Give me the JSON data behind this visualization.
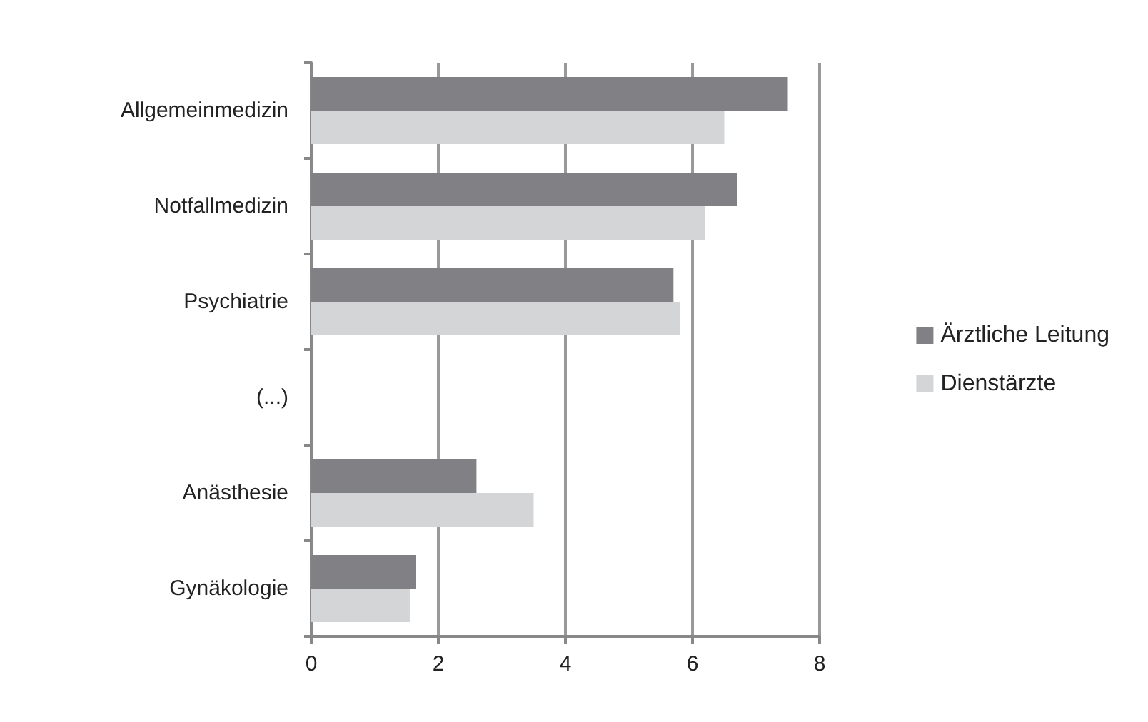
{
  "chart_data": {
    "type": "bar",
    "orientation": "horizontal",
    "categories": [
      "Allgemeinmedizin",
      "Notfallmedizin",
      "Psychiatrie",
      "(...)",
      "Anästhesie",
      "Gynäkologie"
    ],
    "series": [
      {
        "name": "Ärztliche Leitung",
        "color": "#808085",
        "values": [
          7.5,
          6.7,
          5.7,
          null,
          2.6,
          1.65
        ]
      },
      {
        "name": "Dienstärzte",
        "color": "#d4d5d7",
        "values": [
          6.5,
          6.2,
          5.8,
          null,
          3.5,
          1.55
        ]
      }
    ],
    "xlim": [
      0,
      8
    ],
    "xticks": [
      0,
      2,
      4,
      6,
      8
    ],
    "grid": "x",
    "legend": "right"
  }
}
